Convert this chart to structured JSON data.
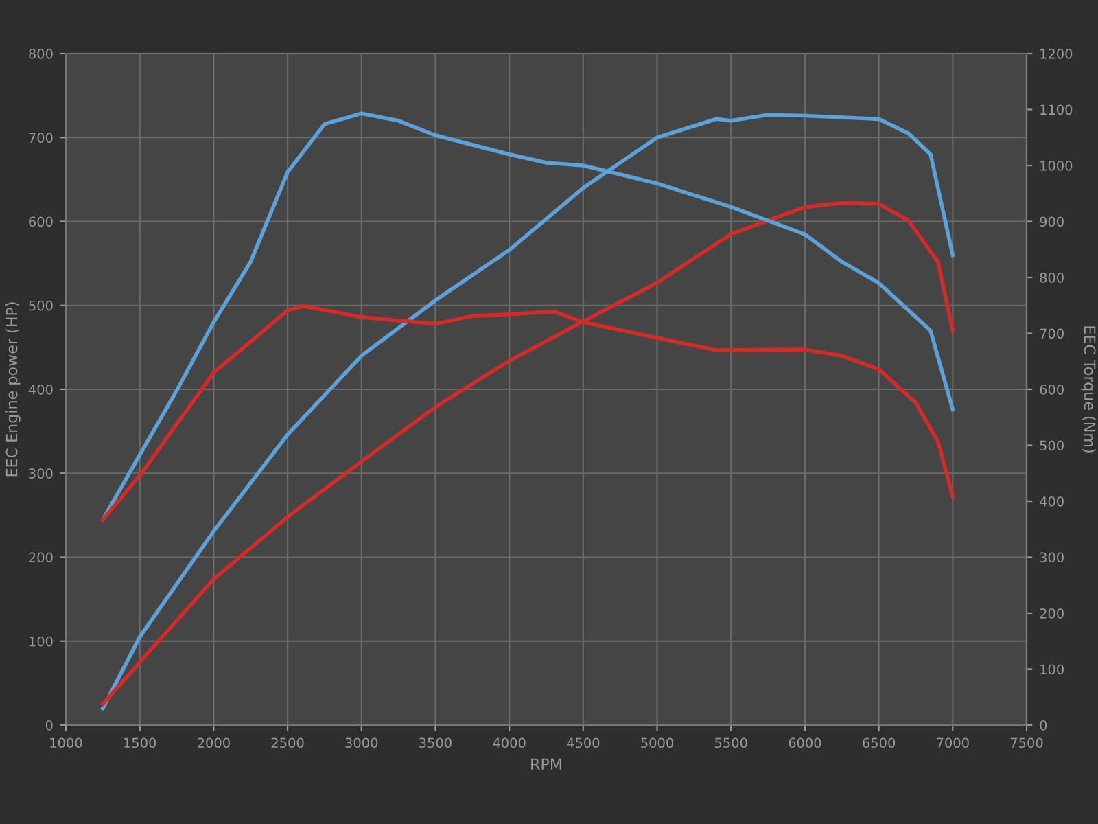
{
  "chart_data": {
    "type": "line",
    "xlabel": "RPM",
    "ylabel": "EEC Engine power (HP)",
    "y2label": "EEC Torque (Nm)",
    "xlim": [
      1000,
      7500
    ],
    "xticks": [
      1000,
      1500,
      2000,
      2500,
      3000,
      3500,
      4000,
      4500,
      5000,
      5500,
      6000,
      6500,
      7000,
      7500
    ],
    "ylim": [
      0,
      800
    ],
    "yticks": [
      0,
      100,
      200,
      300,
      400,
      500,
      600,
      700,
      800
    ],
    "y2lim": [
      0,
      1200
    ],
    "y2ticks": [
      0,
      100,
      200,
      300,
      400,
      500,
      600,
      700,
      800,
      900,
      1000,
      1100,
      1200
    ],
    "grid": true,
    "line_style": "solid",
    "series": [
      {
        "color": "#5ea0d8",
        "x": [
          1250,
          1500,
          2000,
          2500,
          3000,
          3500,
          4000,
          4500,
          5000,
          5400,
          5500,
          5750,
          6000,
          6500,
          6700,
          6850,
          7000
        ],
        "values": [
          20,
          105,
          231,
          346,
          440,
          506,
          566,
          640,
          700,
          722,
          720,
          727,
          726,
          722,
          705,
          680,
          560
        ]
      },
      {
        "color": "#5ea0d8",
        "axis": "y2",
        "x": [
          1250,
          1500,
          1750,
          2000,
          2250,
          2500,
          2750,
          3000,
          3250,
          3500,
          4000,
          4250,
          4500,
          5000,
          5500,
          6000,
          6250,
          6500,
          6850,
          7000
        ],
        "values": [
          367,
          483,
          598,
          720,
          828,
          988,
          1074,
          1093,
          1080,
          1054,
          1020,
          1005,
          1000,
          968,
          926,
          877,
          828,
          790,
          705,
          564
        ]
      },
      {
        "color": "#d42a2a",
        "x": [
          1250,
          1500,
          2000,
          2500,
          3000,
          3500,
          4000,
          4500,
          5000,
          5500,
          6000,
          6250,
          6500,
          6700,
          6900,
          7000
        ],
        "values": [
          25,
          75,
          174,
          248,
          314,
          379,
          434,
          481,
          527,
          585,
          617,
          622,
          621,
          601,
          552,
          470
        ]
      },
      {
        "color": "#d42a2a",
        "axis": "y2",
        "x": [
          1250,
          1500,
          2000,
          2500,
          2600,
          3000,
          3500,
          3750,
          4000,
          4300,
          4500,
          5000,
          5400,
          6000,
          6250,
          6500,
          6750,
          6900,
          7000
        ],
        "values": [
          367,
          446,
          630,
          741,
          749,
          729,
          717,
          731,
          734,
          739,
          720,
          692,
          670,
          671,
          660,
          636,
          576,
          507,
          409
        ]
      }
    ]
  }
}
